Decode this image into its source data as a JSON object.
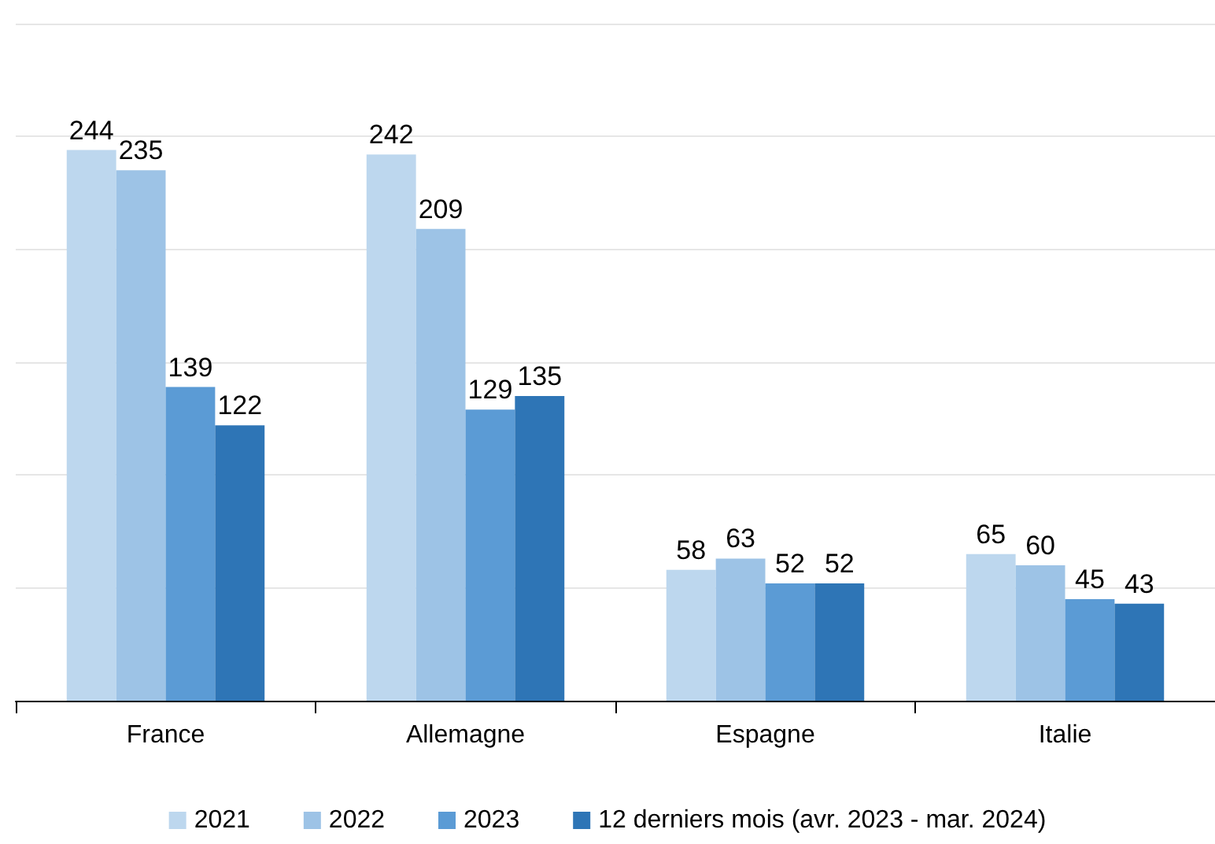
{
  "chart_data": {
    "type": "bar",
    "categories": [
      "France",
      "Allemagne",
      "Espagne",
      "Italie"
    ],
    "series": [
      {
        "name": "2021",
        "color": "#bdd7ee",
        "values": [
          244,
          242,
          58,
          65
        ]
      },
      {
        "name": "2022",
        "color": "#9dc3e6",
        "values": [
          235,
          209,
          63,
          60
        ]
      },
      {
        "name": "2023",
        "color": "#5b9bd5",
        "values": [
          139,
          129,
          52,
          45
        ]
      },
      {
        "name": "12 derniers mois (avr. 2023 - mar. 2024)",
        "color": "#2e75b6",
        "values": [
          122,
          135,
          52,
          43
        ]
      }
    ],
    "ylim": [
      0,
      300
    ],
    "yticks": [
      {
        "value": 0,
        "label": null
      },
      {
        "value": 50,
        "label": null
      },
      {
        "value": 100,
        "label": null
      },
      {
        "value": 150,
        "label": null
      },
      {
        "value": 200,
        "label": null
      },
      {
        "value": 250,
        "label": null
      },
      {
        "value": 300,
        "label": null
      }
    ],
    "grid": "y",
    "legend": "bottom",
    "tick_labels": "x",
    "data_labels": true
  }
}
